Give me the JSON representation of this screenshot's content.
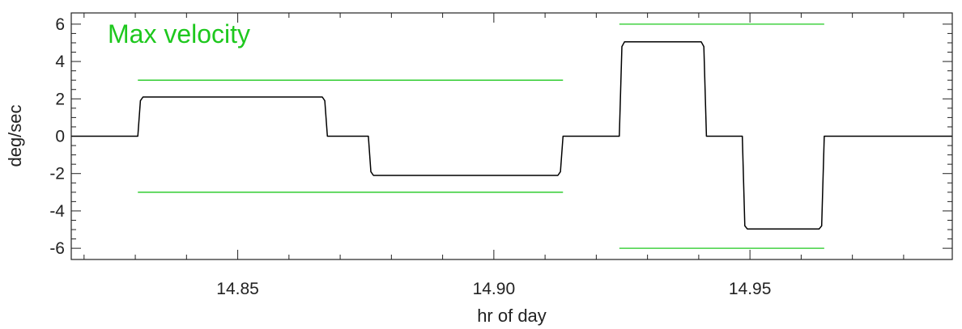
{
  "chart_data": {
    "type": "line",
    "title": "",
    "xlabel": "hr of day",
    "ylabel": "deg/sec",
    "xlim": [
      14.8175,
      14.9895
    ],
    "ylim": [
      -6.6,
      6.6
    ],
    "xticks": [
      14.85,
      14.9,
      14.95
    ],
    "xtick_labels": [
      "14.85",
      "14.90",
      "14.95"
    ],
    "yticks": [
      -6,
      -4,
      -2,
      0,
      2,
      4,
      6
    ],
    "ytick_labels": [
      "-6",
      "-4",
      "-2",
      "0",
      "2",
      "4",
      "6"
    ],
    "grid": false,
    "annotation": {
      "text": "Max velocity",
      "color": "#1ec81e"
    },
    "series": [
      {
        "color": "#000000",
        "x": [
          14.8175,
          14.8305,
          14.831,
          14.8315,
          14.8665,
          14.867,
          14.8675,
          14.8755,
          14.876,
          14.8765,
          14.9125,
          14.913,
          14.9135,
          14.9245,
          14.925,
          14.9255,
          14.9405,
          14.941,
          14.9415,
          14.9485,
          14.949,
          14.9495,
          14.9635,
          14.964,
          14.9645,
          14.9895
        ],
        "y": [
          0,
          0,
          1.9,
          2.1,
          2.1,
          1.9,
          0,
          0,
          -1.9,
          -2.1,
          -2.1,
          -1.9,
          0,
          0,
          4.8,
          5.05,
          5.05,
          4.8,
          0,
          0,
          -4.8,
          -4.97,
          -4.97,
          -4.8,
          0,
          0
        ]
      }
    ],
    "limit_lines": {
      "color": "#1ec81e",
      "segments": [
        {
          "x": [
            14.8305,
            14.9135
          ],
          "y": 3
        },
        {
          "x": [
            14.8305,
            14.9135
          ],
          "y": -3
        },
        {
          "x": [
            14.9245,
            14.9645
          ],
          "y": 6
        },
        {
          "x": [
            14.9245,
            14.9645
          ],
          "y": -6
        }
      ]
    }
  }
}
